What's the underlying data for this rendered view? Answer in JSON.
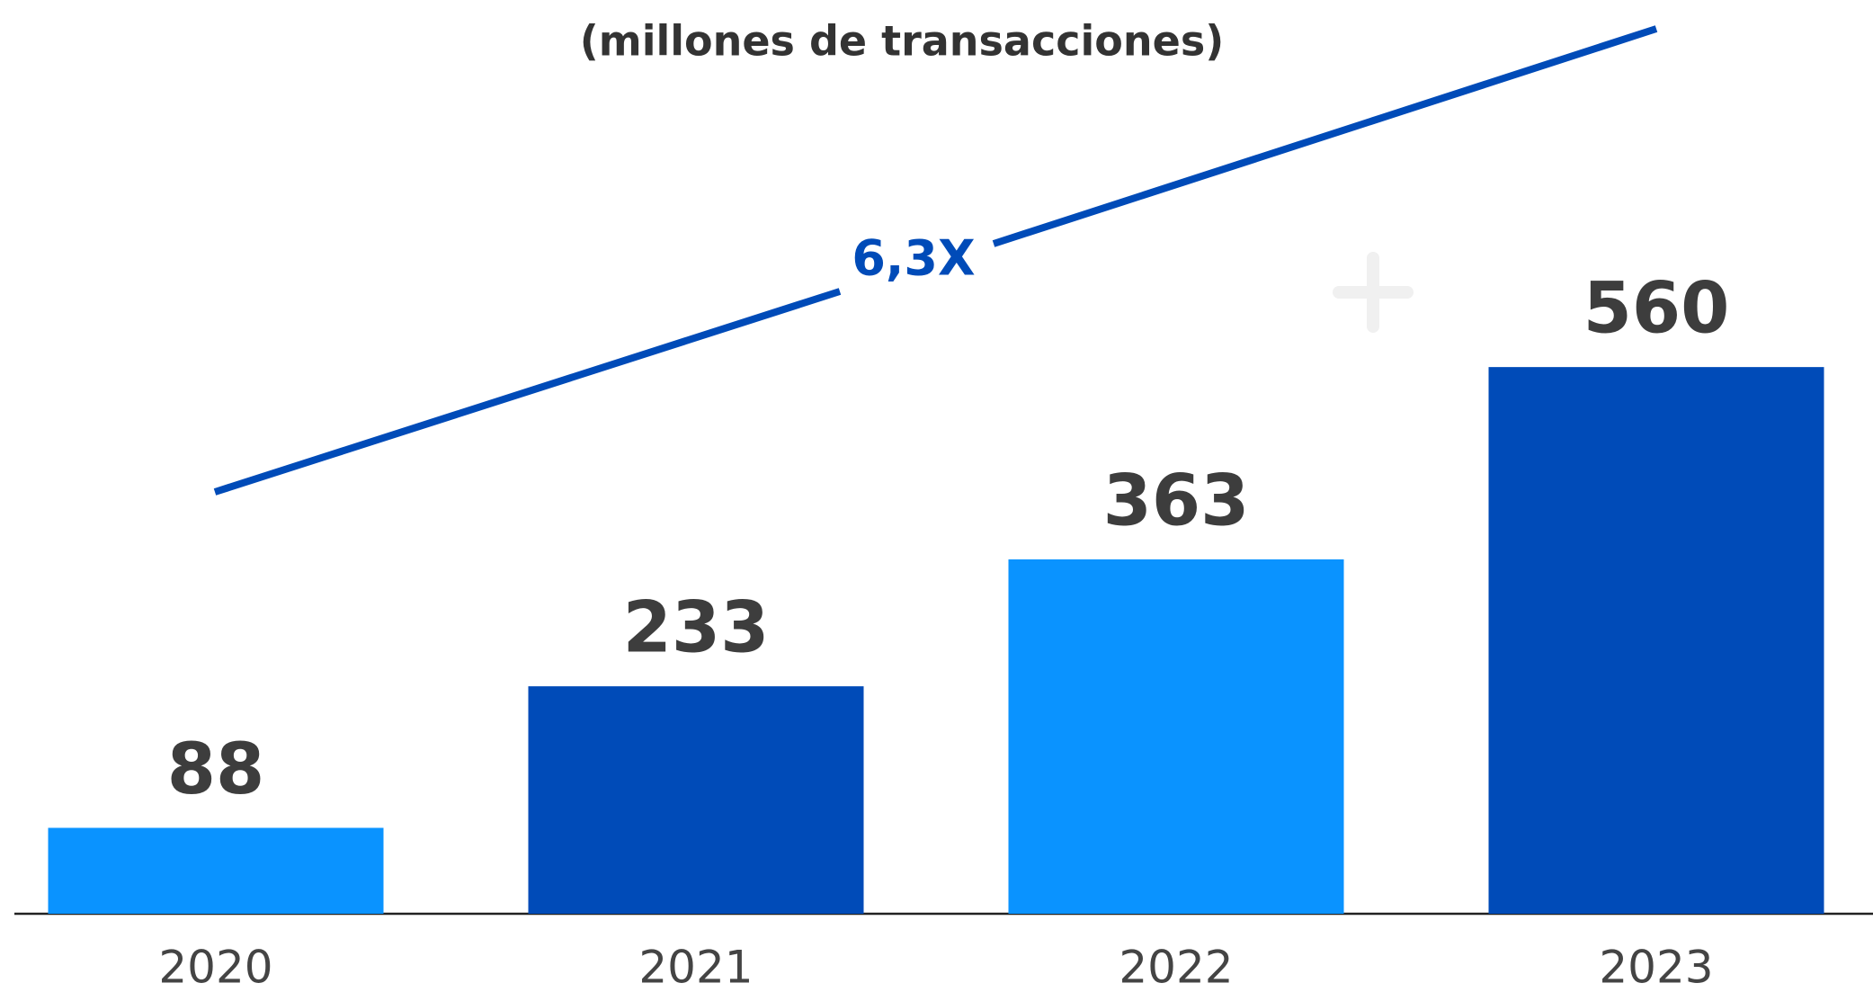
{
  "chart_data": {
    "type": "bar",
    "subtitle": "(millones de transacciones)",
    "annotation": "6,3X",
    "categories": [
      "2020",
      "2021",
      "2022",
      "2023"
    ],
    "values": [
      88,
      233,
      363,
      560
    ],
    "colors": [
      "#0a93ff",
      "#004bb8",
      "#0a93ff",
      "#004bb8"
    ],
    "ylim": [
      0,
      936
    ]
  }
}
